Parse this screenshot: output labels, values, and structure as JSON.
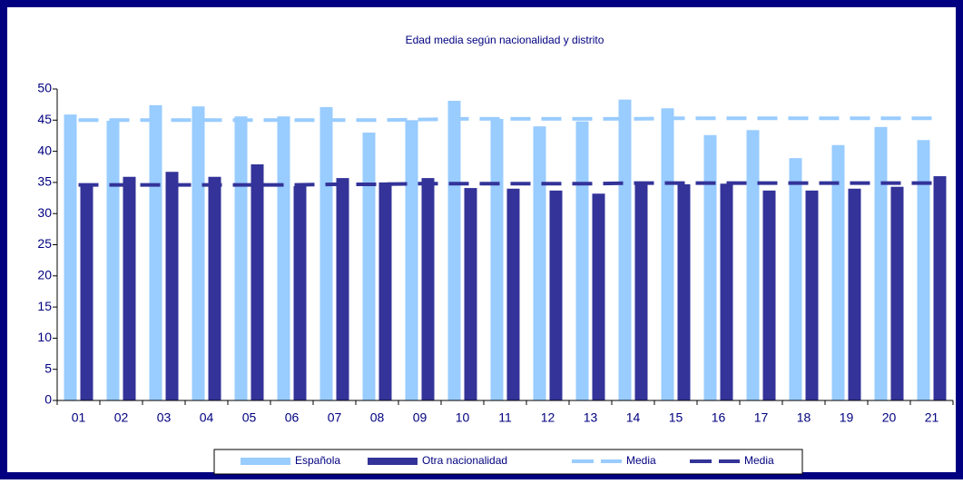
{
  "chart_data": {
    "type": "bar",
    "title": "Edad media según nacionalidad y distrito",
    "categories": [
      "01",
      "02",
      "03",
      "04",
      "05",
      "06",
      "07",
      "08",
      "09",
      "10",
      "11",
      "12",
      "13",
      "14",
      "15",
      "16",
      "17",
      "18",
      "19",
      "20",
      "21"
    ],
    "series": [
      {
        "name": "Española",
        "color": "#99ccff",
        "kind": "bar",
        "values": [
          45.9,
          44.9,
          47.4,
          47.2,
          45.6,
          45.6,
          47.1,
          43.0,
          45.0,
          48.1,
          45.2,
          44.0,
          44.8,
          48.3,
          46.9,
          42.6,
          43.4,
          38.9,
          41.0,
          43.9,
          41.8
        ]
      },
      {
        "name": "Otra nacionalidad",
        "color": "#333399",
        "kind": "bar",
        "values": [
          34.5,
          35.9,
          36.7,
          35.9,
          37.9,
          34.4,
          35.7,
          35.0,
          35.7,
          34.1,
          34.0,
          33.7,
          33.2,
          35.1,
          34.7,
          34.8,
          33.7,
          33.7,
          34.0,
          34.3,
          36.0
        ]
      },
      {
        "name": "Media",
        "color": "#99ccff",
        "kind": "dashed-line",
        "values": [
          45.0,
          45.0,
          45.0,
          45.0,
          45.0,
          45.0,
          45.0,
          45.0,
          45.1,
          45.2,
          45.2,
          45.2,
          45.2,
          45.2,
          45.3,
          45.3,
          45.3,
          45.3,
          45.3,
          45.3,
          45.3
        ]
      },
      {
        "name": "Media",
        "color": "#333399",
        "kind": "dashed-line",
        "values": [
          34.6,
          34.6,
          34.6,
          34.6,
          34.6,
          34.6,
          34.7,
          34.7,
          34.8,
          34.8,
          34.8,
          34.8,
          34.8,
          34.9,
          34.9,
          34.9,
          34.9,
          34.9,
          34.9,
          34.9,
          34.9
        ]
      }
    ],
    "ylim": [
      0,
      50
    ],
    "yticks": [
      0,
      5,
      10,
      15,
      20,
      25,
      30,
      35,
      40,
      45,
      50
    ],
    "legend": "bottom"
  }
}
